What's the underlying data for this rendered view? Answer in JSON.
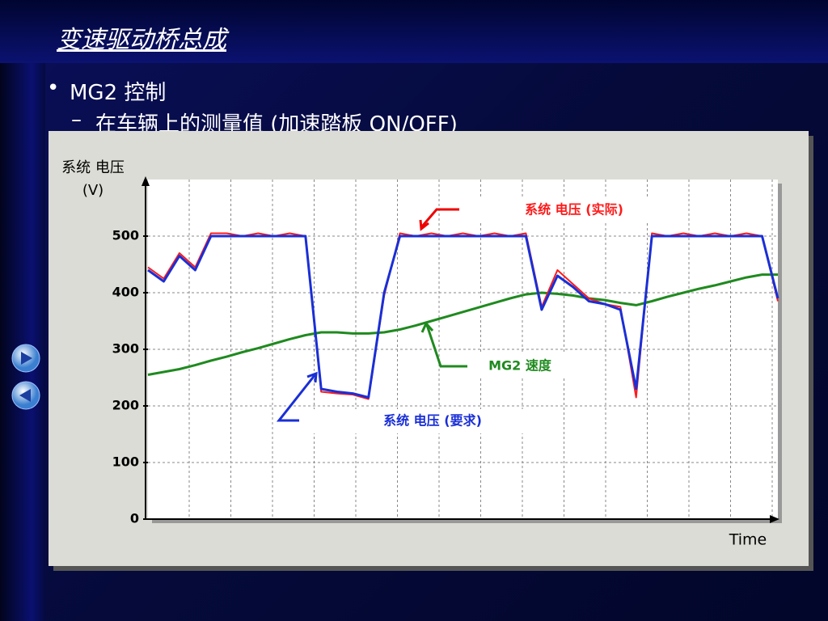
{
  "slide": {
    "title": "变速驱动桥总成",
    "bullet": "MG2 控制",
    "sub_bullet": "在车辆上的测量值 (加速踏板 ON/OFF)"
  },
  "chart_data": {
    "type": "line",
    "ylabel": "系统 电压",
    "yunit": "(V)",
    "xlabel": "Time",
    "ylim": [
      0,
      600
    ],
    "yticks": [
      0,
      100,
      200,
      300,
      400,
      500
    ],
    "grid": true,
    "series": [
      {
        "name": "系统 电压 (实际)",
        "color": "#ff1a1a",
        "values": [
          445,
          425,
          470,
          445,
          505,
          505,
          500,
          505,
          500,
          505,
          500,
          225,
          222,
          220,
          212,
          395,
          505,
          500,
          505,
          500,
          505,
          500,
          505,
          500,
          505,
          375,
          440,
          415,
          390,
          380,
          375,
          215,
          505,
          500,
          505,
          500,
          505,
          500,
          505,
          500,
          385
        ]
      },
      {
        "name": "系统 电压 (要求)",
        "color": "#1a2fd6",
        "values": [
          440,
          420,
          465,
          440,
          500,
          500,
          500,
          500,
          500,
          500,
          500,
          230,
          225,
          222,
          215,
          400,
          500,
          500,
          500,
          500,
          500,
          500,
          500,
          500,
          500,
          370,
          430,
          410,
          385,
          380,
          370,
          230,
          500,
          500,
          500,
          500,
          500,
          500,
          500,
          500,
          390
        ]
      },
      {
        "name": "MG2 速度",
        "color": "#1f8a1f",
        "values": [
          255,
          260,
          265,
          272,
          280,
          287,
          295,
          302,
          310,
          318,
          325,
          330,
          330,
          328,
          328,
          330,
          335,
          342,
          350,
          358,
          366,
          374,
          382,
          390,
          397,
          400,
          398,
          395,
          390,
          387,
          382,
          378,
          385,
          393,
          400,
          407,
          413,
          420,
          427,
          432,
          432
        ]
      }
    ]
  }
}
